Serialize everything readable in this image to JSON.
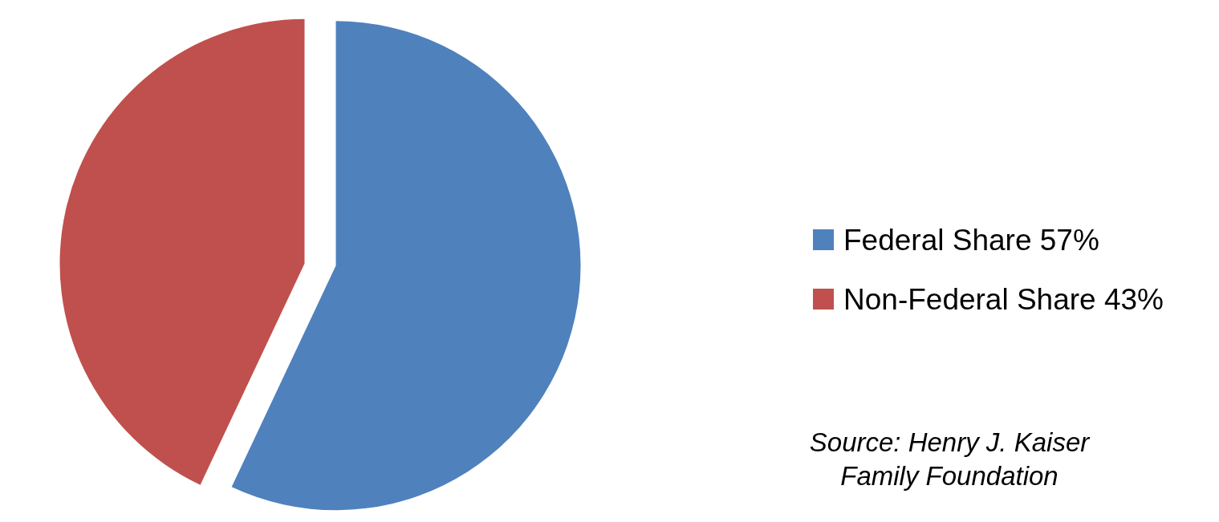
{
  "chart_data": {
    "type": "pie",
    "categories": [
      "Federal Share",
      "Non-Federal Share"
    ],
    "values": [
      57,
      43
    ],
    "value_labels": [
      "57%",
      "43%"
    ],
    "colors": [
      "#4f81bd",
      "#c0504d"
    ],
    "legend": "right",
    "annotations": [
      "Source: Henry J. Kaiser Family Foundation"
    ]
  }
}
